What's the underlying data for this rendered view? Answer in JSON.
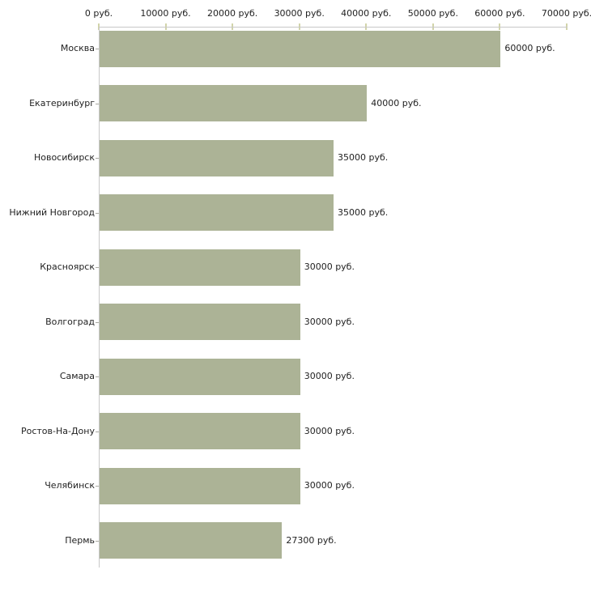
{
  "chart_data": {
    "type": "bar",
    "orientation": "horizontal",
    "title": "",
    "xlabel": "",
    "ylabel": "",
    "unit": "руб.",
    "xlim": [
      0,
      70000
    ],
    "grid": false,
    "legend": false,
    "categories": [
      "Москва",
      "Екатеринбург",
      "Новосибирск",
      "Нижний Новгород",
      "Красноярск",
      "Волгоград",
      "Самара",
      "Ростов-На-Дону",
      "Челябинск",
      "Пермь"
    ],
    "values": [
      60000,
      40000,
      35000,
      35000,
      30000,
      30000,
      30000,
      30000,
      30000,
      27300
    ],
    "value_labels": [
      "60000 руб.",
      "40000 руб.",
      "35000 руб.",
      "35000 руб.",
      "30000 руб.",
      "30000 руб.",
      "30000 руб.",
      "30000 руб.",
      "30000 руб.",
      "27300 руб."
    ],
    "x_ticks": [
      0,
      10000,
      20000,
      30000,
      40000,
      50000,
      60000,
      70000
    ],
    "x_tick_labels": [
      "0 руб.",
      "10000 руб.",
      "20000 руб.",
      "30000 руб.",
      "40000 руб.",
      "50000 руб.",
      "60000 руб.",
      "70000 руб."
    ]
  },
  "colors": {
    "bar": "#acb396",
    "axis_line": "#c8c8c8",
    "axis_tick": "#d2d4aa",
    "category_tick": "#a9a9a2",
    "text": "#222222",
    "background": "#ffffff"
  }
}
